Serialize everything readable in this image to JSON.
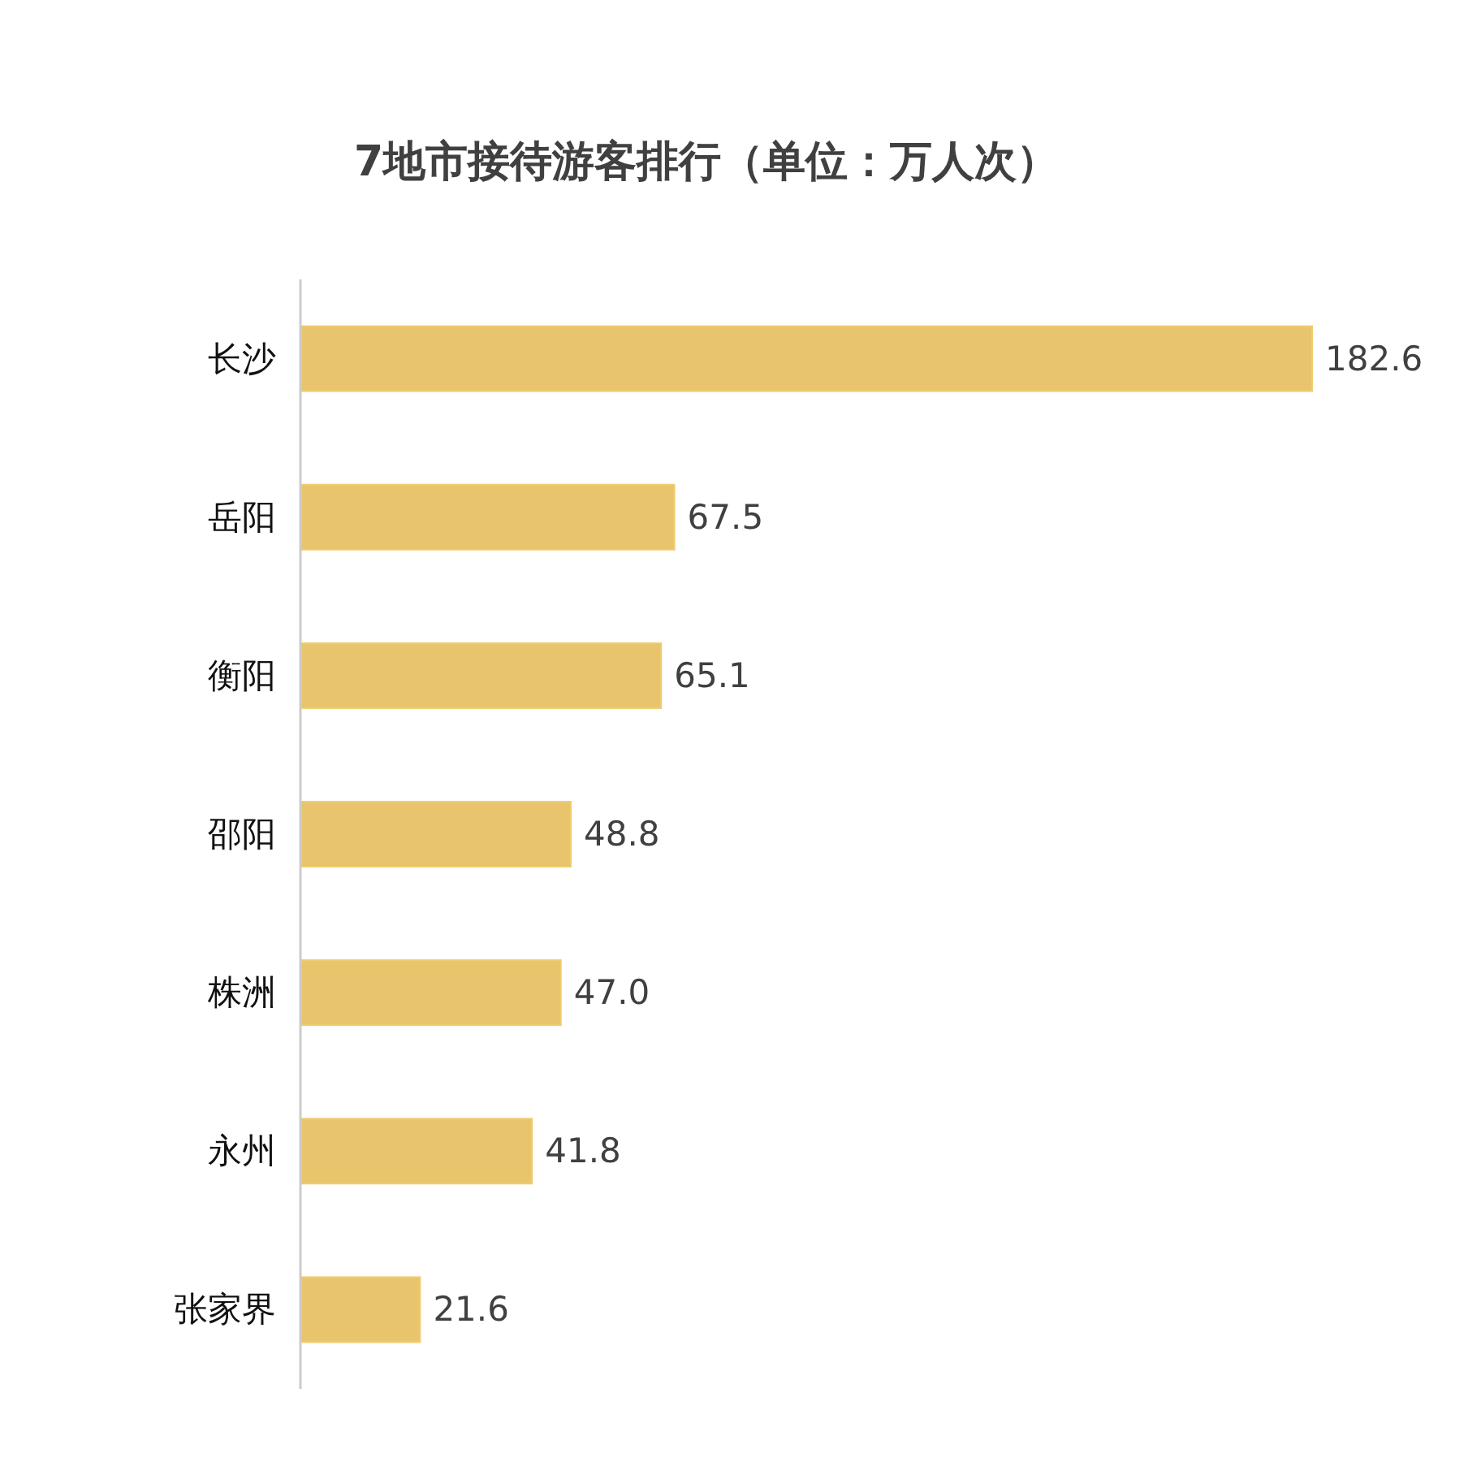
{
  "chart_data": {
    "type": "bar",
    "orientation": "horizontal",
    "title": "7地市接待游客排行（单位：万人次）",
    "categories": [
      "长沙",
      "岳阳",
      "衡阳",
      "邵阳",
      "株洲",
      "永州",
      "张家界"
    ],
    "values": [
      182.6,
      67.5,
      65.1,
      48.8,
      47.0,
      41.8,
      21.6
    ],
    "value_labels": [
      "182.6",
      "67.5",
      "65.1",
      "48.8",
      "47.0",
      "41.8",
      "21.6"
    ],
    "color": "#e8c46c"
  }
}
